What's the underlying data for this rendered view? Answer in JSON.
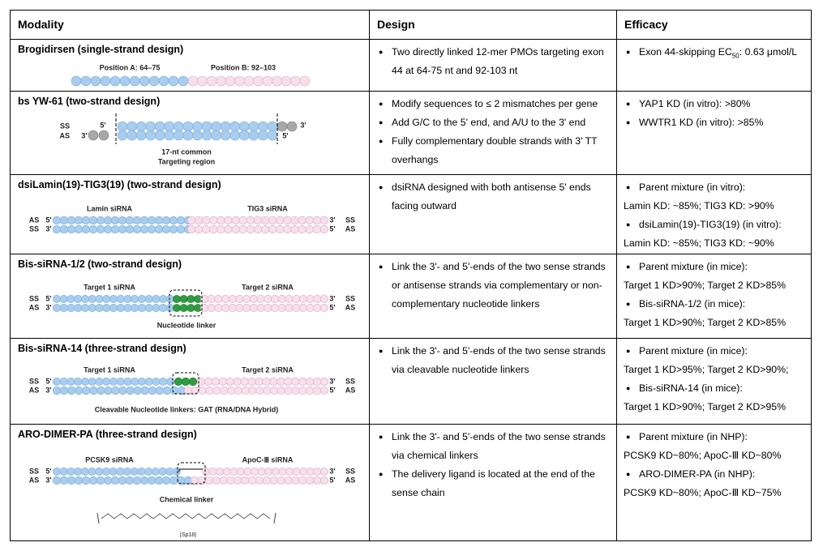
{
  "table": {
    "headers": [
      "Modality",
      "Design",
      "Efficacy"
    ],
    "rows": [
      {
        "title": "Brogidirsen (single-strand design)",
        "diagram_labels": [
          "Position A: 64–75",
          "Position B: 92–103"
        ],
        "design": [
          "Two directly linked 12-mer PMOs targeting exon 44 at 64-75 nt and 92-103 nt"
        ],
        "efficacy": [
          {
            "text": "Exon 44-skipping EC",
            "sub": "50",
            "tail": ": 0.63 μmol/L"
          }
        ]
      },
      {
        "title": "bs YW-61 (two-strand design)",
        "diagram_labels": [
          "SS",
          "AS",
          "5'",
          "3'",
          "3'",
          "5'",
          "17-nt common",
          "Targeting region"
        ],
        "design": [
          "Modify sequences to ≤ 2 mismatches per gene",
          "Add G/C to the 5' end, and A/U to the 3' end",
          "Fully complementary double strands with 3' TT overhangs"
        ],
        "efficacy": [
          {
            "text": "YAP1 KD (in vitro): >80%"
          },
          {
            "text": "WWTR1 KD (in vitro): >85%"
          }
        ]
      },
      {
        "title": "dsiLamin(19)-TIG3(19) (two-strand design)",
        "diagram_labels": [
          "Lamin siRNA",
          "TIG3 siRNA",
          "AS",
          "5'",
          "3'",
          "SS",
          "SS",
          "3'",
          "5'",
          "AS"
        ],
        "design": [
          "dsiRNA designed with both antisense 5' ends facing outward"
        ],
        "efficacy": [
          {
            "text": "Parent mixture (in vitro):",
            "detail": "Lamin KD: ~85%; TIG3 KD: >90%"
          },
          {
            "text": "dsiLamin(19)-TIG3(19) (in vitro):",
            "detail": "Lamin KD: ~85%; TIG3 KD: ~90%"
          }
        ]
      },
      {
        "title": "Bis-siRNA-1/2 (two-strand design)",
        "diagram_labels": [
          "Target 1 siRNA",
          "Target 2 siRNA",
          "SS",
          "5'",
          "3'",
          "SS",
          "AS",
          "3'",
          "5'",
          "AS",
          "Nucleotide linker"
        ],
        "design": [
          "Link the 3'- and 5'-ends of the two sense strands or antisense strands via complementary or non-complementary nucleotide linkers"
        ],
        "efficacy": [
          {
            "text": "Parent mixture (in mice):",
            "detail": "Target 1 KD>90%; Target 2 KD>85%"
          },
          {
            "text": "Bis-siRNA-1/2 (in mice):",
            "detail": "Target 1 KD>90%; Target 2 KD>85%"
          }
        ]
      },
      {
        "title": "Bis-siRNA-14 (three-strand design)",
        "diagram_labels": [
          "Target 1 siRNA",
          "Target 2 siRNA",
          "SS",
          "5'",
          "3'",
          "SS",
          "AS",
          "3'",
          "5'",
          "AS",
          "Cleavable Nucleotide linkers: GAT (RNA/DNA Hybrid)"
        ],
        "design": [
          "Link the 3'- and 5'-ends of the two sense strands via cleavable nucleotide linkers"
        ],
        "efficacy": [
          {
            "text": "Parent mixture (in mice):",
            "detail": "Target 1 KD>95%; Target 2 KD>90%;"
          },
          {
            "text": "Bis-siRNA-14 (in mice):",
            "detail": "Target 1 KD>90%; Target 2 KD>95%"
          }
        ]
      },
      {
        "title": "ARO-DIMER-PA (three-strand design)",
        "diagram_labels": [
          "PCSK9 siRNA",
          "ApoC-Ⅲ siRNA",
          "SS",
          "5'",
          "3'",
          "SS",
          "AS",
          "3'",
          "5'",
          "AS",
          "Chemical linker",
          "(Sp18)"
        ],
        "design": [
          "Link the 3'- and 5'-ends of the two sense strands via chemical linkers",
          "The delivery ligand is located at the end of the sense chain"
        ],
        "efficacy": [
          {
            "text": "Parent mixture (in NHP):",
            "detail": "PCSK9 KD~80%; ApoC-Ⅲ KD~80%"
          },
          {
            "text": "ARO-DIMER-PA (in NHP):",
            "detail": "PCSK9 KD~80%; ApoC-Ⅲ KD~75%"
          }
        ]
      }
    ]
  }
}
